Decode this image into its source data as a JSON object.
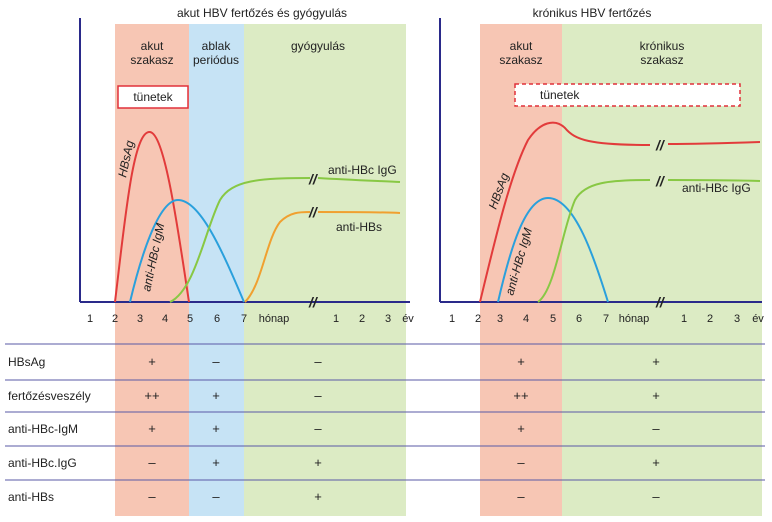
{
  "colors": {
    "acute_band": "#f7c6b4",
    "window_band": "#c6e3f5",
    "recovery_band": "#dcebc4",
    "axis": "#2a2a8a",
    "hbsag_curve": "#e23b3b",
    "igm_curve": "#2aa0dc",
    "igg_curve": "#88c844",
    "antihbs_curve": "#f0a030",
    "symptom_box_border": "#e0303a",
    "row_line": "#5a5aa6"
  },
  "left_panel": {
    "title": "akut HBV fertőzés és gyógyulás",
    "phase_acute": [
      "akut",
      "szakasz"
    ],
    "phase_window": [
      "ablak",
      "periódus"
    ],
    "phase_recovery": "gyógyulás",
    "symptoms": "tünetek",
    "curve_labels": {
      "hbsag": "HBsAg",
      "igm": "anti-HBc IgM",
      "igg": "anti-HBc IgG",
      "antihbs": "anti-HBs"
    },
    "month_ticks": [
      "1",
      "2",
      "3",
      "4",
      "5",
      "6",
      "7"
    ],
    "month_unit": "hónap",
    "year_ticks": [
      "1",
      "2",
      "3"
    ],
    "year_unit": "év",
    "axis_break": "//"
  },
  "right_panel": {
    "title": "krónikus HBV fertőzés",
    "phase_acute": [
      "akut",
      "szakasz"
    ],
    "phase_chronic": [
      "krónikus",
      "szakasz"
    ],
    "symptoms": "tünetek",
    "curve_labels": {
      "hbsag": "HBsAg",
      "igm": "anti-HBc IgM",
      "igg": "anti-HBc IgG"
    },
    "month_ticks": [
      "1",
      "2",
      "3",
      "4",
      "5",
      "6",
      "7"
    ],
    "month_unit": "hónap",
    "year_ticks": [
      "1",
      "2",
      "3"
    ],
    "year_unit": "év",
    "axis_break": "//"
  },
  "table": {
    "rows": [
      {
        "label": "HBsAg",
        "acute": "+",
        "window": "–",
        "recovery": "–",
        "chronic_acute": "+",
        "chronic": "+"
      },
      {
        "label": "fertőzésveszély",
        "acute": "++",
        "window": "+",
        "recovery": "–",
        "chronic_acute": "++",
        "chronic": "+"
      },
      {
        "label": "anti-HBc-IgM",
        "acute": "+",
        "window": "+",
        "recovery": "–",
        "chronic_acute": "+",
        "chronic": "–"
      },
      {
        "label": "anti-HBc.IgG",
        "acute": "–",
        "window": "+",
        "recovery": "+",
        "chronic_acute": "–",
        "chronic": "+"
      },
      {
        "label": "anti-HBs",
        "acute": "–",
        "window": "–",
        "recovery": "+",
        "chronic_acute": "–",
        "chronic": "–"
      }
    ]
  }
}
